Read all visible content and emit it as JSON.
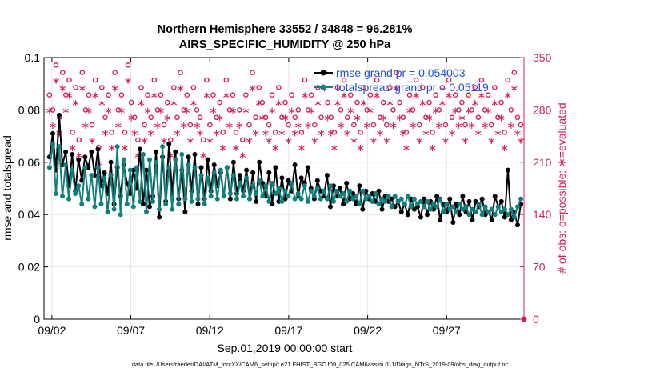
{
  "chart_data": {
    "type": "line",
    "title_line1": "Northern Hemisphere 33552 / 34848 = 96.281%",
    "title_line2": "AIRS_SPECIFIC_HUMIDITY @ 250 hPa",
    "xlabel": "Sep.01,2019 00:00:00 start",
    "ylabel_left": "rmse and totalspread",
    "ylabel_right": "# of obs: o=possible; ∗=evaluated",
    "xlim": [
      0.5,
      30.9
    ],
    "ylim_left": [
      0,
      0.1
    ],
    "ylim_right": [
      0,
      350
    ],
    "x_ticks": [
      1,
      6,
      11,
      16,
      21,
      26
    ],
    "x_tick_labels": [
      "09/02",
      "09/07",
      "09/12",
      "09/17",
      "09/22",
      "09/27"
    ],
    "y_ticks_left": [
      0,
      0.02,
      0.04,
      0.06,
      0.08,
      0.1
    ],
    "y_tick_labels_left": [
      "0",
      "0.02",
      "0.04",
      "0.06",
      "0.08",
      "0.1"
    ],
    "y_ticks_right": [
      0,
      70,
      140,
      210,
      280,
      350
    ],
    "y_tick_labels_right": [
      "0",
      "70",
      "140",
      "210",
      "280",
      "350"
    ],
    "grid": true,
    "legend_position": "top-right",
    "series": [
      {
        "name": "rmse grand pr = 0.054003",
        "color": "#000000",
        "marker": "dot",
        "values": [
          0.062,
          0.071,
          0.057,
          0.078,
          0.059,
          0.064,
          0.051,
          0.063,
          0.049,
          0.061,
          0.053,
          0.062,
          0.058,
          0.064,
          0.055,
          0.065,
          0.051,
          0.056,
          0.048,
          0.06,
          0.044,
          0.058,
          0.047,
          0.059,
          0.052,
          0.048,
          0.057,
          0.05,
          0.065,
          0.044,
          0.057,
          0.043,
          0.047,
          0.064,
          0.039,
          0.062,
          0.045,
          0.067,
          0.048,
          0.064,
          0.046,
          0.057,
          0.041,
          0.062,
          0.049,
          0.063,
          0.044,
          0.058,
          0.046,
          0.061,
          0.049,
          0.059,
          0.051,
          0.056,
          0.047,
          0.058,
          0.046,
          0.06,
          0.048,
          0.055,
          0.049,
          0.057,
          0.046,
          0.056,
          0.045,
          0.06,
          0.052,
          0.047,
          0.056,
          0.044,
          0.058,
          0.045,
          0.054,
          0.046,
          0.053,
          0.049,
          0.059,
          0.047,
          0.054,
          0.052,
          0.058,
          0.05,
          0.046,
          0.053,
          0.049,
          0.047,
          0.055,
          0.043,
          0.051,
          0.047,
          0.05,
          0.044,
          0.052,
          0.046,
          0.048,
          0.044,
          0.051,
          0.042,
          0.049,
          0.046,
          0.048,
          0.045,
          0.049,
          0.042,
          0.047,
          0.045,
          0.046,
          0.043,
          0.045,
          0.041,
          0.044,
          0.04,
          0.046,
          0.042,
          0.043,
          0.039,
          0.046,
          0.04,
          0.045,
          0.042,
          0.047,
          0.038,
          0.044,
          0.041,
          0.046,
          0.037,
          0.044,
          0.04,
          0.047,
          0.041,
          0.045,
          0.038,
          0.045,
          0.043,
          0.046,
          0.04,
          0.041,
          0.038,
          0.047,
          0.043,
          0.045,
          0.039,
          0.057,
          0.038,
          0.041,
          0.036,
          0.044
        ]
      },
      {
        "name": "totalspread grand pr = 0.05119",
        "color": "#0f7f7f",
        "marker": "dot",
        "values": [
          0.058,
          0.067,
          0.048,
          0.066,
          0.047,
          0.059,
          0.046,
          0.057,
          0.048,
          0.051,
          0.044,
          0.058,
          0.046,
          0.055,
          0.043,
          0.058,
          0.044,
          0.054,
          0.041,
          0.055,
          0.042,
          0.066,
          0.04,
          0.061,
          0.044,
          0.057,
          0.043,
          0.058,
          0.045,
          0.063,
          0.041,
          0.061,
          0.045,
          0.06,
          0.042,
          0.066,
          0.044,
          0.058,
          0.042,
          0.061,
          0.044,
          0.063,
          0.046,
          0.059,
          0.045,
          0.058,
          0.046,
          0.055,
          0.044,
          0.054,
          0.047,
          0.056,
          0.046,
          0.057,
          0.047,
          0.058,
          0.048,
          0.055,
          0.046,
          0.052,
          0.047,
          0.054,
          0.046,
          0.051,
          0.048,
          0.053,
          0.047,
          0.051,
          0.045,
          0.052,
          0.048,
          0.05,
          0.045,
          0.049,
          0.047,
          0.052,
          0.046,
          0.048,
          0.046,
          0.051,
          0.045,
          0.049,
          0.047,
          0.05,
          0.046,
          0.049,
          0.046,
          0.051,
          0.045,
          0.049,
          0.047,
          0.048,
          0.045,
          0.049,
          0.046,
          0.047,
          0.044,
          0.049,
          0.046,
          0.047,
          0.045,
          0.048,
          0.044,
          0.046,
          0.045,
          0.047,
          0.043,
          0.047,
          0.045,
          0.046,
          0.044,
          0.047,
          0.043,
          0.046,
          0.044,
          0.045,
          0.043,
          0.045,
          0.042,
          0.044,
          0.043,
          0.046,
          0.041,
          0.044,
          0.042,
          0.043,
          0.041,
          0.044,
          0.042,
          0.043,
          0.04,
          0.042,
          0.041,
          0.044,
          0.04,
          0.043,
          0.041,
          0.042,
          0.04,
          0.043,
          0.041,
          0.042,
          0.04,
          0.042,
          0.039,
          0.043,
          0.046
        ]
      },
      {
        "name": "obs possible",
        "color": "#d81e5b",
        "marker": "circle",
        "axis": "right",
        "values": [
          300,
          280,
          340,
          270,
          330,
          300,
          320,
          250,
          310,
          240,
          330,
          280,
          300,
          260,
          320,
          230,
          310,
          270,
          300,
          250,
          330,
          280,
          300,
          250,
          340,
          290,
          270,
          240,
          310,
          260,
          300,
          270,
          320,
          280,
          300,
          260,
          290,
          240,
          310,
          270,
          330,
          280,
          300,
          260,
          310,
          280,
          270,
          240,
          320,
          260,
          300,
          270,
          290,
          250,
          320,
          280,
          300,
          250,
          280,
          240,
          300,
          260,
          330,
          270,
          310,
          290,
          270,
          260,
          300,
          250,
          310,
          270,
          290,
          260,
          300,
          270,
          280,
          250,
          320,
          280,
          300,
          260,
          310,
          270,
          330,
          290,
          270,
          250,
          310,
          280,
          320,
          270,
          300,
          260,
          290,
          250,
          310,
          280,
          300,
          260,
          320,
          270,
          290,
          260,
          310,
          280,
          330,
          290,
          270,
          250,
          300,
          280,
          320,
          260,
          310,
          270,
          290,
          250,
          300,
          280,
          310,
          260,
          320,
          270,
          300,
          280,
          290,
          260,
          300,
          280,
          310,
          270,
          320,
          280,
          300,
          260,
          310,
          270,
          290,
          250,
          320,
          280,
          330,
          270,
          260
        ]
      },
      {
        "name": "obs evaluated",
        "color": "#d81e5b",
        "marker": "star",
        "axis": "right",
        "values": [
          280,
          260,
          320,
          250,
          310,
          280,
          300,
          230,
          290,
          220,
          310,
          260,
          280,
          240,
          300,
          210,
          290,
          250,
          280,
          230,
          310,
          260,
          280,
          230,
          320,
          270,
          250,
          220,
          290,
          240,
          280,
          250,
          300,
          260,
          280,
          240,
          270,
          220,
          290,
          250,
          310,
          260,
          280,
          240,
          290,
          260,
          250,
          220,
          300,
          240,
          280,
          250,
          270,
          230,
          300,
          260,
          280,
          230,
          260,
          220,
          280,
          240,
          310,
          250,
          290,
          270,
          250,
          240,
          280,
          230,
          290,
          250,
          270,
          240,
          280,
          250,
          260,
          230,
          300,
          260,
          280,
          240,
          290,
          250,
          310,
          270,
          250,
          230,
          290,
          260,
          300,
          250,
          280,
          240,
          270,
          230,
          290,
          260,
          280,
          240,
          300,
          250,
          270,
          240,
          290,
          260,
          310,
          270,
          250,
          230,
          280,
          260,
          300,
          240,
          290,
          250,
          270,
          230,
          280,
          260,
          290,
          240,
          300,
          250,
          280,
          260,
          270,
          240,
          280,
          260,
          290,
          250,
          300,
          260,
          280,
          240,
          290,
          250,
          270,
          230,
          300,
          260,
          310,
          250,
          240
        ]
      }
    ],
    "footnote": "data file: /Users/raeder/DAI/ATM_forcXX/CAM6_setup/f.e21.FHIST_BGC.f09_025.CAM6assim.011/Diags_NTrS_2019-09/obs_diag_output.nc"
  }
}
